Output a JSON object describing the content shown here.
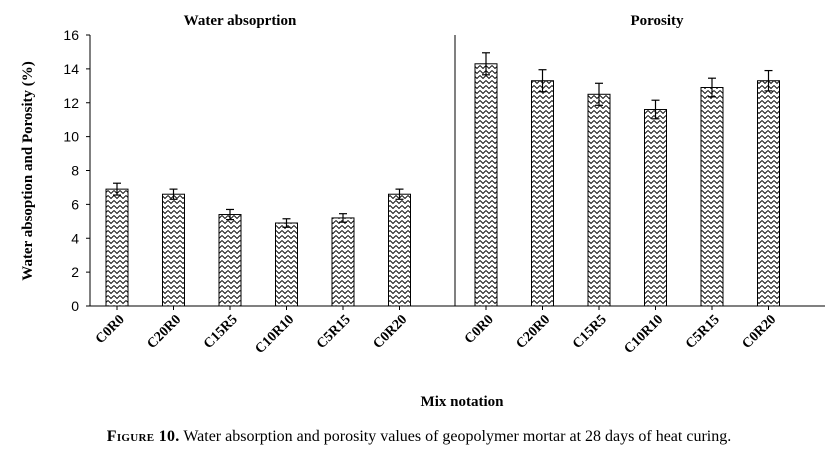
{
  "chart_data": {
    "type": "bar",
    "ylabel": "Water absoption  and Porosity  (%)",
    "xlabel": "Mix notation",
    "ylim": [
      0,
      16
    ],
    "yticks": [
      0,
      2,
      4,
      6,
      8,
      10,
      12,
      14,
      16
    ],
    "grid": false,
    "bar_fill": "zigzag-pattern",
    "panels": [
      {
        "title": "Water absoprtion",
        "categories": [
          "C0R0",
          "C20R0",
          "C15R5",
          "C10R10",
          "C5R15",
          "C0R20"
        ],
        "values": [
          6.9,
          6.6,
          5.4,
          4.9,
          5.2,
          6.6
        ],
        "errors": [
          0.35,
          0.3,
          0.3,
          0.25,
          0.25,
          0.3
        ]
      },
      {
        "title": "Porosity",
        "categories": [
          "C0R0",
          "C20R0",
          "C15R5",
          "C10R10",
          "C5R15",
          "C0R20"
        ],
        "values": [
          14.3,
          13.3,
          12.5,
          11.6,
          12.9,
          13.3
        ],
        "errors": [
          0.65,
          0.65,
          0.65,
          0.55,
          0.55,
          0.6
        ]
      }
    ]
  },
  "caption": {
    "figure_label": "Figure 10.",
    "text": " Water absorption and porosity values of geopolymer mortar at 28 days of heat curing."
  }
}
